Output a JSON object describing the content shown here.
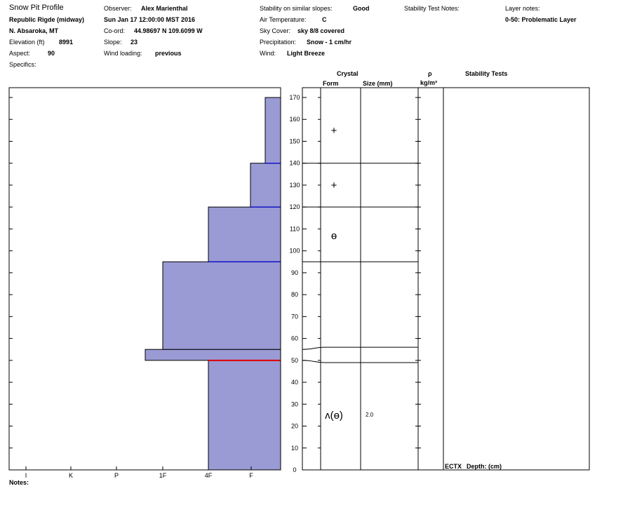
{
  "header": {
    "title": "Snow Pit Profile",
    "location": "Republic Rigde (midway)",
    "region": "N. Absaroka, MT",
    "elevation_label": "Elevation (ft)",
    "elevation_value": "8991",
    "aspect_label": "Aspect:",
    "aspect_value": "90",
    "specifics_label": "Specifics:",
    "observer_label": "Observer:",
    "observer_value": "Alex Marienthal",
    "date_value": "Sun Jan 17 12:00:00 MST 2016",
    "coord_label": "Co-ord:",
    "coord_value": "44.98697 N 109.6099 W",
    "slope_label": "Slope:",
    "slope_value": "23",
    "wind_loading_label": "Wind loading:",
    "wind_loading_value": "previous",
    "stability_label": "Stability on similar slopes:",
    "stability_value": "Good",
    "air_temp_label": "Air Temperature:",
    "air_temp_value": "C",
    "sky_label": "Sky Cover:",
    "sky_value": "sky 8/8 covered",
    "precip_label": "Precipitation:",
    "precip_value": "Snow - 1 cm/hr",
    "wind_label": "Wind:",
    "wind_value": "Light Breeze",
    "stability_notes_label": "Stability Test Notes:",
    "layer_notes_label": "Layer notes:",
    "layer_notes_value": "0-50: Problematic Layer"
  },
  "columns": {
    "crystal": "Crystal",
    "form": "Form",
    "size": "Size (mm)",
    "rho": "ρ",
    "density_unit": "kg/m³",
    "stability_tests": "Stability Tests"
  },
  "footer": {
    "ectx": "ECTX",
    "depth": "Depth: (cm)",
    "notes": "Notes:"
  },
  "layer_symbols": [
    {
      "depth": 155,
      "symbol": "+"
    },
    {
      "depth": 130,
      "symbol": "+"
    },
    {
      "depth": 107,
      "symbol": "ɵ"
    },
    {
      "depth": 25,
      "symbol": "ʌ(ɵ)",
      "size": "2.0"
    }
  ],
  "chart_data": {
    "type": "area",
    "xlabel": "",
    "ylabel": "",
    "ylim": [
      0,
      170
    ],
    "y_ticks": [
      170,
      160,
      150,
      140,
      130,
      120,
      110,
      100,
      90,
      80,
      70,
      60,
      50,
      40,
      30,
      20,
      10,
      0
    ],
    "hardness_ticks": [
      "I",
      "K",
      "P",
      "1F",
      "4F",
      "F"
    ],
    "hardness_profile": [
      {
        "bottom": 0,
        "top": 50,
        "hardness": "4F"
      },
      {
        "bottom": 50,
        "top": 55,
        "hardness": "1F+"
      },
      {
        "bottom": 55,
        "top": 95,
        "hardness": "1F"
      },
      {
        "bottom": 95,
        "top": 120,
        "hardness": "4F"
      },
      {
        "bottom": 120,
        "top": 140,
        "hardness": "F+"
      },
      {
        "bottom": 140,
        "top": 170,
        "hardness": "F-"
      }
    ],
    "layer_boundaries": [
      95,
      120,
      140
    ],
    "weak_layer_lines": [
      49,
      56
    ],
    "problem_layer_depth": 50,
    "colors": {
      "fill": "#9a9ad4",
      "edge": "#0000ff",
      "problem": "#e00000"
    }
  }
}
